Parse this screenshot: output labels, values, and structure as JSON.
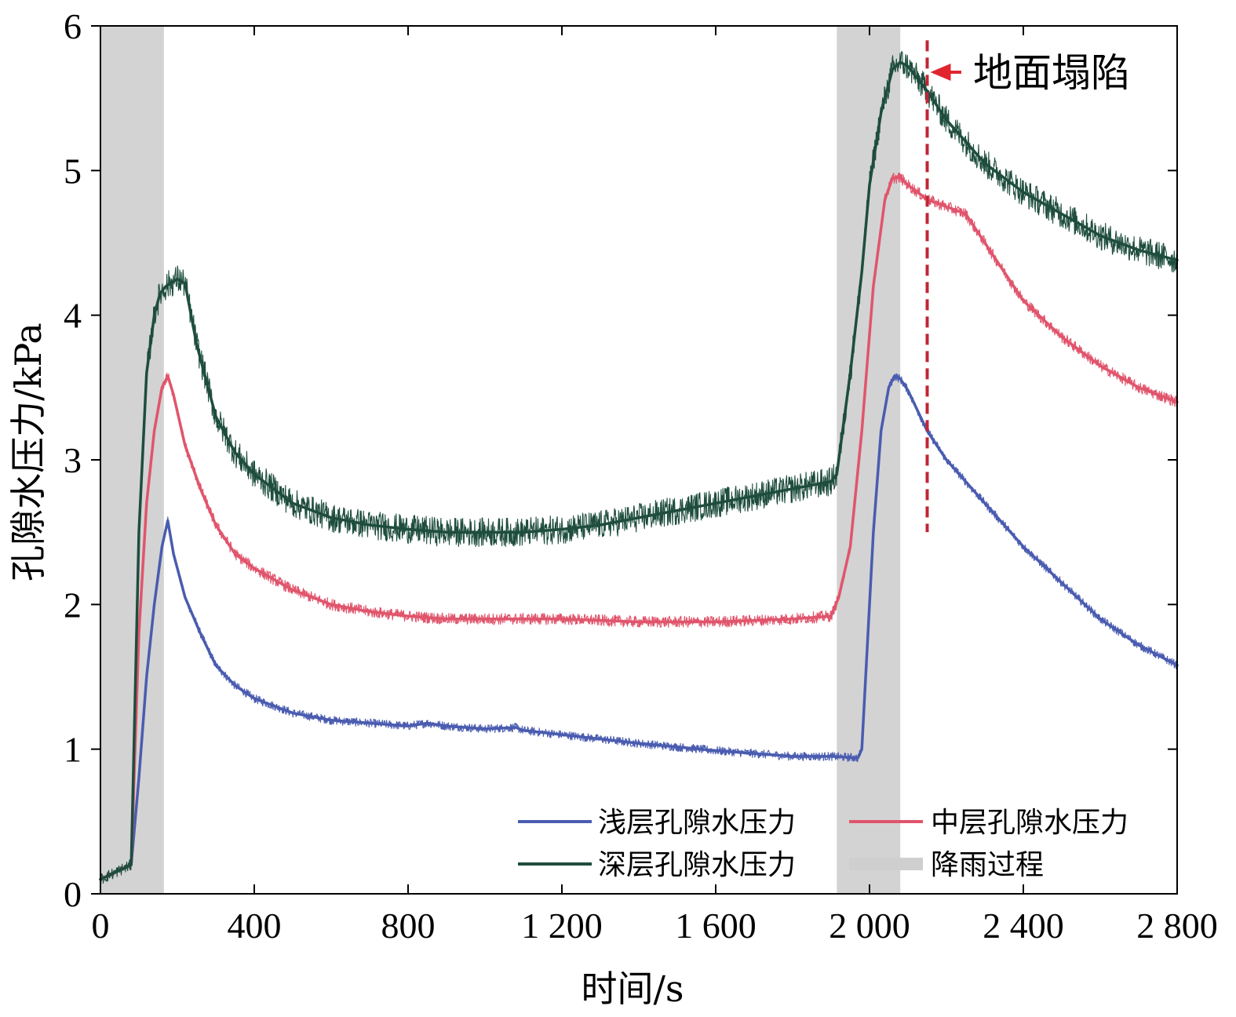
{
  "chart_data": {
    "type": "line",
    "xlabel": "时间/s",
    "ylabel": "孔隙水压力/kPa",
    "xlim": [
      0,
      2800
    ],
    "ylim": [
      0,
      6
    ],
    "xticks": [
      0,
      400,
      800,
      1200,
      1600,
      2000,
      2400,
      2800
    ],
    "xtick_labels": [
      "0",
      "400",
      "800",
      "1 200",
      "1 600",
      "2 000",
      "2 400",
      "2 800"
    ],
    "yticks": [
      0,
      1,
      2,
      3,
      4,
      5,
      6
    ],
    "ytick_labels": [
      "0",
      "1",
      "2",
      "3",
      "4",
      "5",
      "6"
    ],
    "grid": false,
    "legend_position": "bottom-right",
    "shaded_regions": [
      {
        "label": "降雨过程",
        "x": [
          0,
          165
        ],
        "y": [
          0,
          6
        ],
        "color": "#d3d3d3"
      },
      {
        "label": "降雨过程",
        "x": [
          1915,
          2080
        ],
        "y": [
          0,
          6
        ],
        "color": "#d3d3d3"
      }
    ],
    "series": [
      {
        "name": "浅层孔隙水压力",
        "color": "#4a5cb0",
        "noise": 0.03,
        "x": [
          0,
          80,
          100,
          120,
          140,
          160,
          175,
          190,
          220,
          260,
          300,
          350,
          400,
          500,
          600,
          700,
          800,
          850,
          900,
          1000,
          1080,
          1100,
          1200,
          1400,
          1600,
          1700,
          1800,
          1900,
          1970,
          1980,
          1990,
          2010,
          2030,
          2050,
          2065,
          2080,
          2100,
          2150,
          2200,
          2300,
          2400,
          2500,
          2600,
          2700,
          2800
        ],
        "y": [
          0.1,
          0.2,
          0.8,
          1.5,
          2.0,
          2.4,
          2.58,
          2.35,
          2.05,
          1.8,
          1.58,
          1.44,
          1.35,
          1.25,
          1.2,
          1.18,
          1.16,
          1.18,
          1.16,
          1.14,
          1.15,
          1.13,
          1.1,
          1.04,
          0.99,
          0.97,
          0.95,
          0.95,
          0.94,
          1.0,
          1.5,
          2.5,
          3.2,
          3.5,
          3.58,
          3.56,
          3.48,
          3.2,
          3.0,
          2.7,
          2.4,
          2.15,
          1.9,
          1.72,
          1.58
        ]
      },
      {
        "name": "中层孔隙水压力",
        "color": "#e0556c",
        "noise": 0.04,
        "x": [
          0,
          80,
          100,
          120,
          140,
          160,
          175,
          190,
          220,
          260,
          300,
          350,
          400,
          500,
          600,
          700,
          800,
          900,
          1000,
          1200,
          1400,
          1600,
          1800,
          1900,
          1920,
          1950,
          1980,
          2010,
          2040,
          2060,
          2080,
          2100,
          2150,
          2200,
          2250,
          2300,
          2350,
          2400,
          2500,
          2600,
          2700,
          2800
        ],
        "y": [
          0.1,
          0.2,
          1.8,
          2.7,
          3.2,
          3.5,
          3.58,
          3.45,
          3.1,
          2.8,
          2.55,
          2.35,
          2.25,
          2.1,
          2.0,
          1.95,
          1.92,
          1.9,
          1.9,
          1.9,
          1.88,
          1.88,
          1.9,
          1.92,
          2.05,
          2.4,
          3.2,
          4.2,
          4.8,
          4.95,
          4.95,
          4.9,
          4.8,
          4.75,
          4.7,
          4.5,
          4.3,
          4.1,
          3.85,
          3.65,
          3.5,
          3.4
        ]
      },
      {
        "name": "深层孔隙水压力",
        "color": "#1e4d3e",
        "noise": 0.1,
        "x": [
          0,
          80,
          100,
          120,
          140,
          155,
          170,
          200,
          220,
          250,
          300,
          350,
          400,
          500,
          600,
          700,
          800,
          900,
          1000,
          1100,
          1200,
          1300,
          1400,
          1500,
          1600,
          1700,
          1800,
          1900,
          1915,
          1950,
          1980,
          2000,
          2030,
          2060,
          2080,
          2100,
          2150,
          2200,
          2300,
          2400,
          2500,
          2600,
          2700,
          2800
        ],
        "y": [
          0.1,
          0.2,
          2.5,
          3.6,
          4.0,
          4.15,
          4.2,
          4.25,
          4.22,
          3.8,
          3.3,
          3.05,
          2.9,
          2.7,
          2.6,
          2.55,
          2.52,
          2.5,
          2.5,
          2.5,
          2.52,
          2.55,
          2.6,
          2.65,
          2.7,
          2.75,
          2.8,
          2.85,
          2.9,
          3.6,
          4.3,
          4.9,
          5.4,
          5.7,
          5.75,
          5.72,
          5.55,
          5.35,
          5.05,
          4.85,
          4.7,
          4.55,
          4.45,
          4.38
        ]
      }
    ],
    "legend": [
      {
        "label": "浅层孔隙水压力",
        "kind": "line",
        "color": "#4a5cb0"
      },
      {
        "label": "中层孔隙水压力",
        "kind": "line",
        "color": "#e0556c"
      },
      {
        "label": "深层孔隙水压力",
        "kind": "line",
        "color": "#1e4d3e"
      },
      {
        "label": "降雨过程",
        "kind": "band",
        "color": "#cfcfcf"
      }
    ],
    "annotations": [
      {
        "text": "地面塌陷",
        "x": 2150,
        "y_top": 5.9,
        "y_bottom": 2.5,
        "arrow_color": "#e0252f",
        "line_color": "#c02635"
      }
    ]
  }
}
